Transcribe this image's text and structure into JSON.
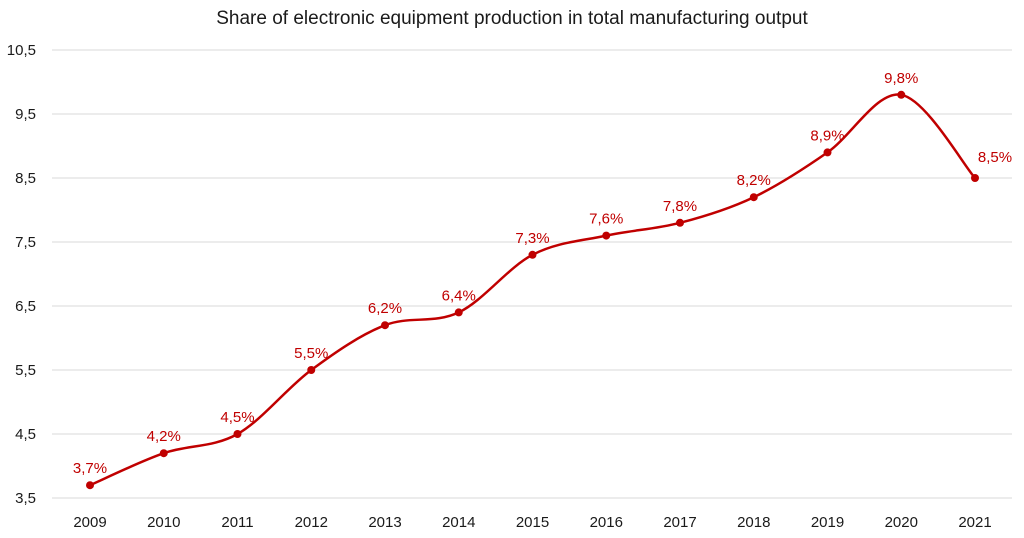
{
  "chart_data": {
    "type": "line",
    "title": "Share of electronic equipment production in total manufacturing output",
    "xlabel": "",
    "ylabel": "",
    "categories": [
      "2009",
      "2010",
      "2011",
      "2012",
      "2013",
      "2014",
      "2015",
      "2016",
      "2017",
      "2018",
      "2019",
      "2020",
      "2021"
    ],
    "series": [
      {
        "values": [
          3.7,
          4.2,
          4.5,
          5.5,
          6.2,
          6.4,
          7.3,
          7.6,
          7.8,
          8.2,
          8.9,
          9.8,
          8.5
        ],
        "labels": [
          "3,7%",
          "4,2%",
          "4,5%",
          "5,5%",
          "6,2%",
          "6,4%",
          "7,3%",
          "7,6%",
          "7,8%",
          "8,2%",
          "8,9%",
          "9,8%",
          "8,5%"
        ],
        "color": "#c00000",
        "smooth": true
      }
    ],
    "ylim": [
      3.5,
      10.5
    ],
    "yticks": [
      3.5,
      4.5,
      5.5,
      6.5,
      7.5,
      8.5,
      9.5,
      10.5
    ],
    "ytick_labels": [
      "3,5",
      "4,5",
      "5,5",
      "6,5",
      "7,5",
      "8,5",
      "9,5",
      "10,5"
    ],
    "grid": "horizontal",
    "legend": "none"
  }
}
